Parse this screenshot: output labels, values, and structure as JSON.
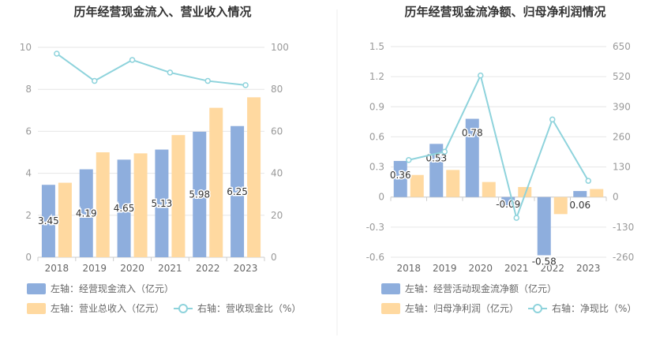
{
  "chart_data": [
    {
      "type": "bar",
      "title": "历年经营现金流入、营业收入情况",
      "categories": [
        "2018",
        "2019",
        "2020",
        "2021",
        "2022",
        "2023"
      ],
      "left_axis": {
        "min": 0,
        "max": 10,
        "ticks": [
          "0",
          "2",
          "4",
          "6",
          "8",
          "10"
        ]
      },
      "right_axis": {
        "min": 0,
        "max": 100,
        "ticks": [
          "0",
          "20",
          "40",
          "60",
          "80",
          "100"
        ]
      },
      "series": [
        {
          "name": "左轴：经营现金流入（亿元）",
          "kind": "bar",
          "axis": "left",
          "color": "#8eaedd",
          "values": [
            3.45,
            4.19,
            4.65,
            5.13,
            5.98,
            6.25
          ],
          "labels": [
            "3.45",
            "4.19",
            "4.65",
            "5.13",
            "5.98",
            "6.25"
          ]
        },
        {
          "name": "左轴：营业总收入（亿元）",
          "kind": "bar",
          "axis": "left",
          "color": "#ffd9a0",
          "values": [
            3.55,
            5.0,
            4.95,
            5.82,
            7.12,
            7.62
          ]
        },
        {
          "name": "右轴：营收现金比（%）",
          "kind": "line",
          "axis": "right",
          "color": "#8ed3dc",
          "values": [
            97,
            84,
            94,
            88,
            84,
            82
          ]
        }
      ]
    },
    {
      "type": "bar",
      "title": "历年经营现金流净额、归母净利润情况",
      "categories": [
        "2018",
        "2019",
        "2020",
        "2021",
        "2022",
        "2023"
      ],
      "left_axis": {
        "min": -0.6,
        "max": 1.5,
        "ticks": [
          "-0.6",
          "-0.3",
          "0",
          "0.3",
          "0.6",
          "0.9",
          "1.2",
          "1.5"
        ]
      },
      "right_axis": {
        "min": -260,
        "max": 650,
        "ticks": [
          "-260",
          "-130",
          "0",
          "130",
          "260",
          "390",
          "520",
          "650"
        ]
      },
      "series": [
        {
          "name": "左轴：经营活动现金流净额（亿元）",
          "kind": "bar",
          "axis": "left",
          "color": "#8eaedd",
          "values": [
            0.36,
            0.53,
            0.78,
            -0.09,
            -0.58,
            0.06
          ],
          "labels": [
            "0.36",
            "0.53",
            "0.78",
            "-0.09",
            "-0.58",
            "0.06"
          ]
        },
        {
          "name": "左轴：归母净利润（亿元）",
          "kind": "bar",
          "axis": "left",
          "color": "#ffd9a0",
          "values": [
            0.22,
            0.27,
            0.15,
            0.1,
            -0.17,
            0.08
          ]
        },
        {
          "name": "右轴：净现比（%）",
          "kind": "line",
          "axis": "right",
          "color": "#8ed3dc",
          "values": [
            160,
            196,
            525,
            -90,
            335,
            70
          ]
        }
      ]
    }
  ]
}
